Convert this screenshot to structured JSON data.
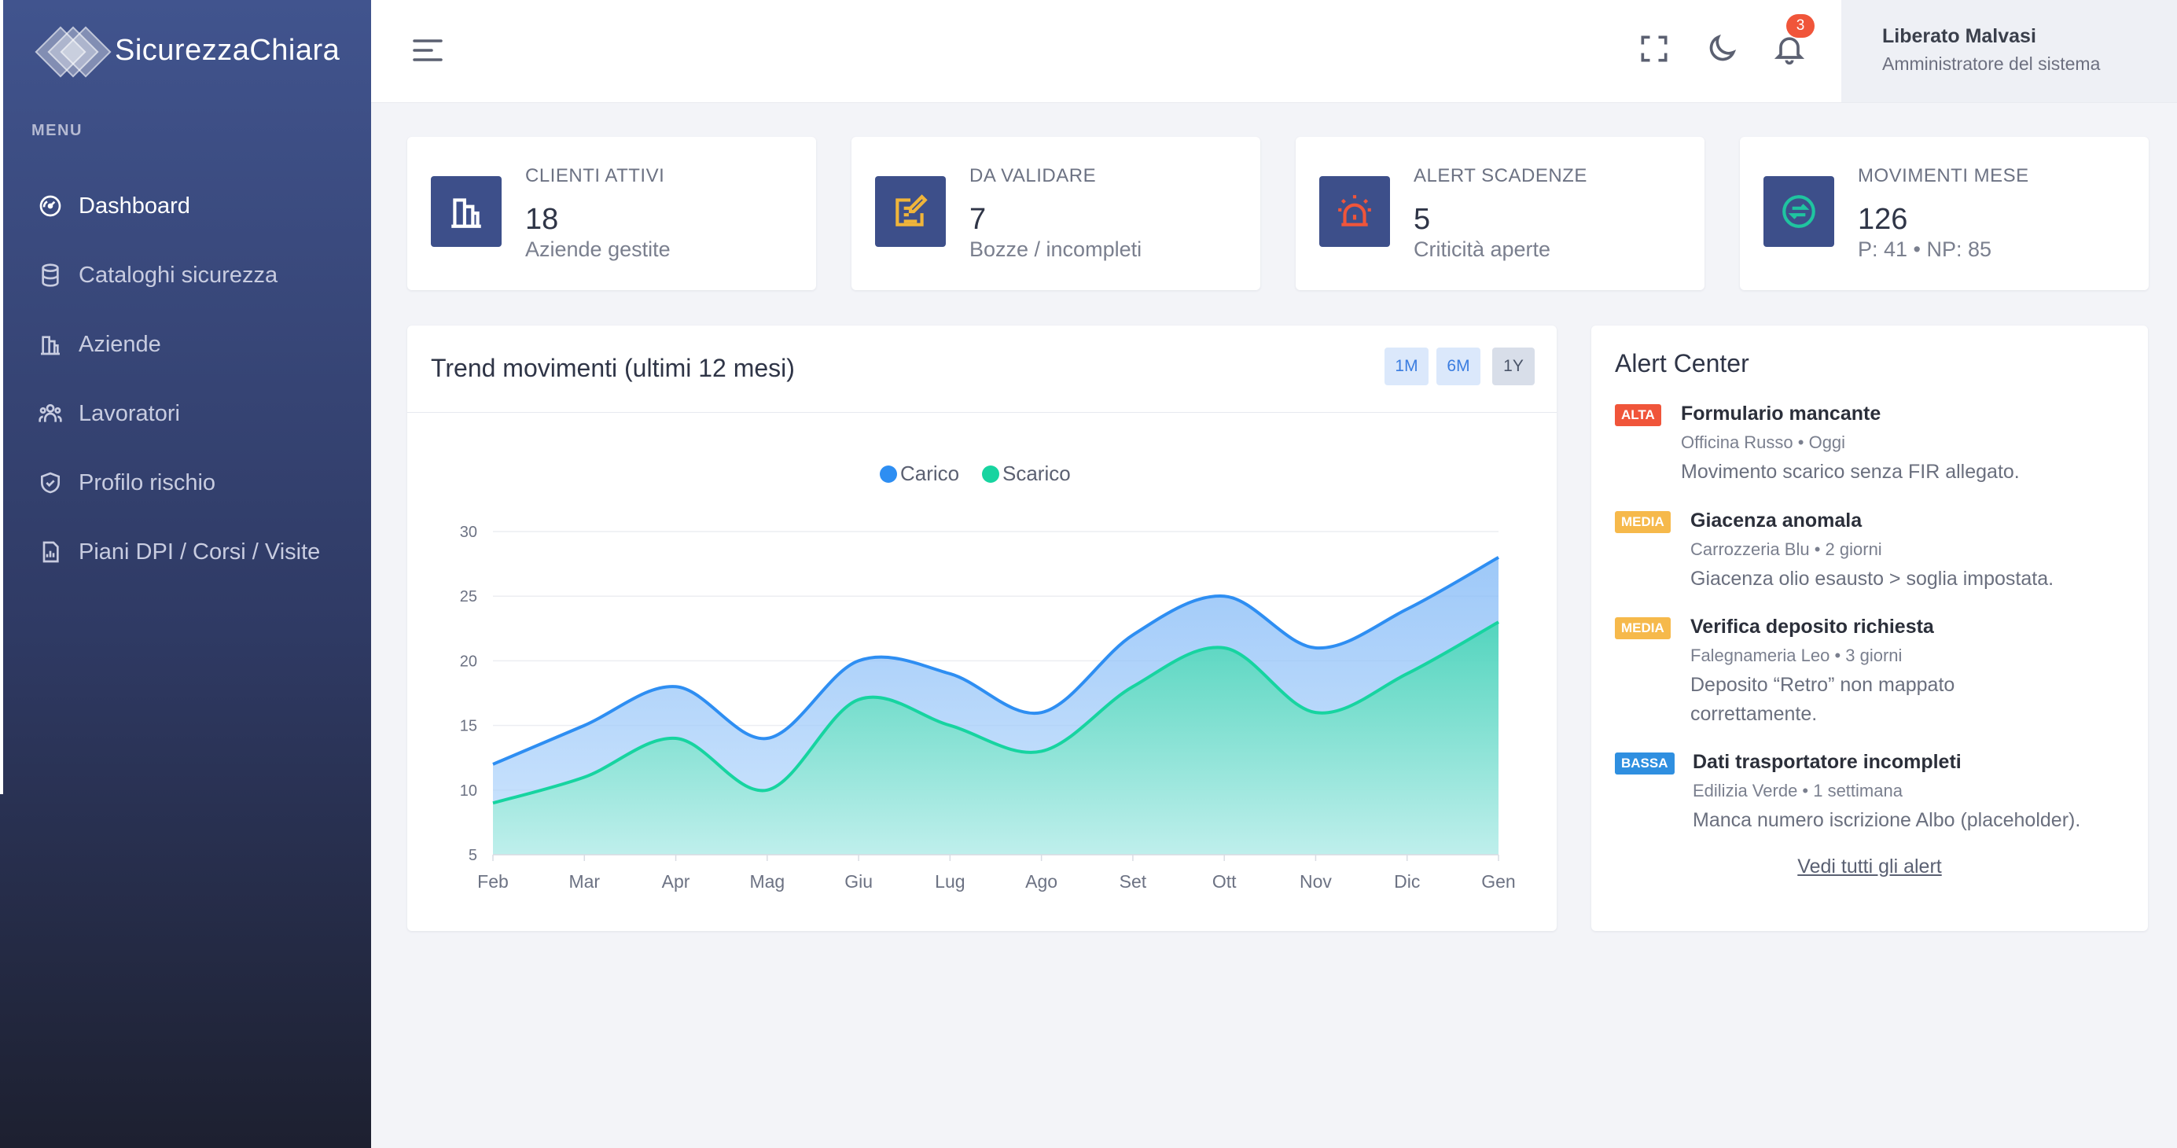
{
  "brand": {
    "name": "SicurezzaChiara"
  },
  "sidebar": {
    "menu_title": "MENU",
    "items": [
      {
        "label": "Dashboard",
        "icon": "dashboard-gauge-icon",
        "active": true
      },
      {
        "label": "Cataloghi sicurezza",
        "icon": "database-icon"
      },
      {
        "label": "Aziende",
        "icon": "building-icon"
      },
      {
        "label": "Lavoratori",
        "icon": "users-icon"
      },
      {
        "label": "Profilo rischio",
        "icon": "shield-check-icon"
      },
      {
        "label": "Piani DPI / Corsi / Visite",
        "icon": "report-chart-icon"
      }
    ]
  },
  "topbar": {
    "notifications_count": "3",
    "user_name": "Liberato Malvasi",
    "user_role": "Amministratore del sistema"
  },
  "stats": [
    {
      "label": "CLIENTI ATTIVI",
      "value": "18",
      "sub": "Aziende gestite",
      "icon": "building-icon",
      "icon_color": "#ffffff"
    },
    {
      "label": "DA VALIDARE",
      "value": "7",
      "sub": "Bozze / incompleti",
      "icon": "edit-document-icon",
      "icon_color": "#f0b53a"
    },
    {
      "label": "ALERT SCADENZE",
      "value": "5",
      "sub": "Criticità aperte",
      "icon": "alarm-siren-icon",
      "icon_color": "#f0553a"
    },
    {
      "label": "MOVIMENTI MESE",
      "value": "126",
      "sub": "P: 41 • NP: 85",
      "icon": "exchange-circle-icon",
      "icon_color": "#1fc4a0"
    }
  ],
  "chart_card": {
    "title": "Trend movimenti (ultimi 12 mesi)",
    "ranges": [
      "1M",
      "6M",
      "1Y"
    ],
    "active_range": "1Y"
  },
  "chart_data": {
    "type": "area",
    "categories": [
      "Feb",
      "Mar",
      "Apr",
      "Mag",
      "Giu",
      "Lug",
      "Ago",
      "Set",
      "Ott",
      "Nov",
      "Dic",
      "Gen"
    ],
    "series": [
      {
        "name": "Carico",
        "color": "#2e8ef2",
        "values": [
          12,
          15,
          18,
          14,
          20,
          19,
          16,
          22,
          25,
          21,
          24,
          28
        ]
      },
      {
        "name": "Scarico",
        "color": "#17d4a0",
        "values": [
          9,
          11,
          14,
          10,
          17,
          15,
          13,
          18,
          21,
          16,
          19,
          23
        ]
      }
    ],
    "ylim": [
      5,
      30
    ],
    "yticks": [
      5,
      10,
      15,
      20,
      25,
      30
    ],
    "legend": "top-center",
    "grid": true
  },
  "alerts": {
    "title": "Alert Center",
    "items": [
      {
        "level": "ALTA",
        "level_color": "#f0553a",
        "title": "Formulario mancante",
        "meta": "Officina Russo • Oggi",
        "message": "Movimento scarico senza FIR allegato."
      },
      {
        "level": "MEDIA",
        "level_color": "#f6b94b",
        "title": "Giacenza anomala",
        "meta": "Carrozzeria Blu • 2 giorni",
        "message": "Giacenza olio esausto > soglia impostata."
      },
      {
        "level": "MEDIA",
        "level_color": "#f6b94b",
        "title": "Verifica deposito richiesta",
        "meta": "Falegnameria Leo • 3 giorni",
        "message": "Deposito “Retro” non mappato correttamente."
      },
      {
        "level": "BASSA",
        "level_color": "#2f8fe0",
        "title": "Dati trasportatore incompleti",
        "meta": "Edilizia Verde • 1 settimana",
        "message": "Manca numero iscrizione Albo (placeholder)."
      }
    ],
    "see_all": "Vedi tutti gli alert"
  }
}
